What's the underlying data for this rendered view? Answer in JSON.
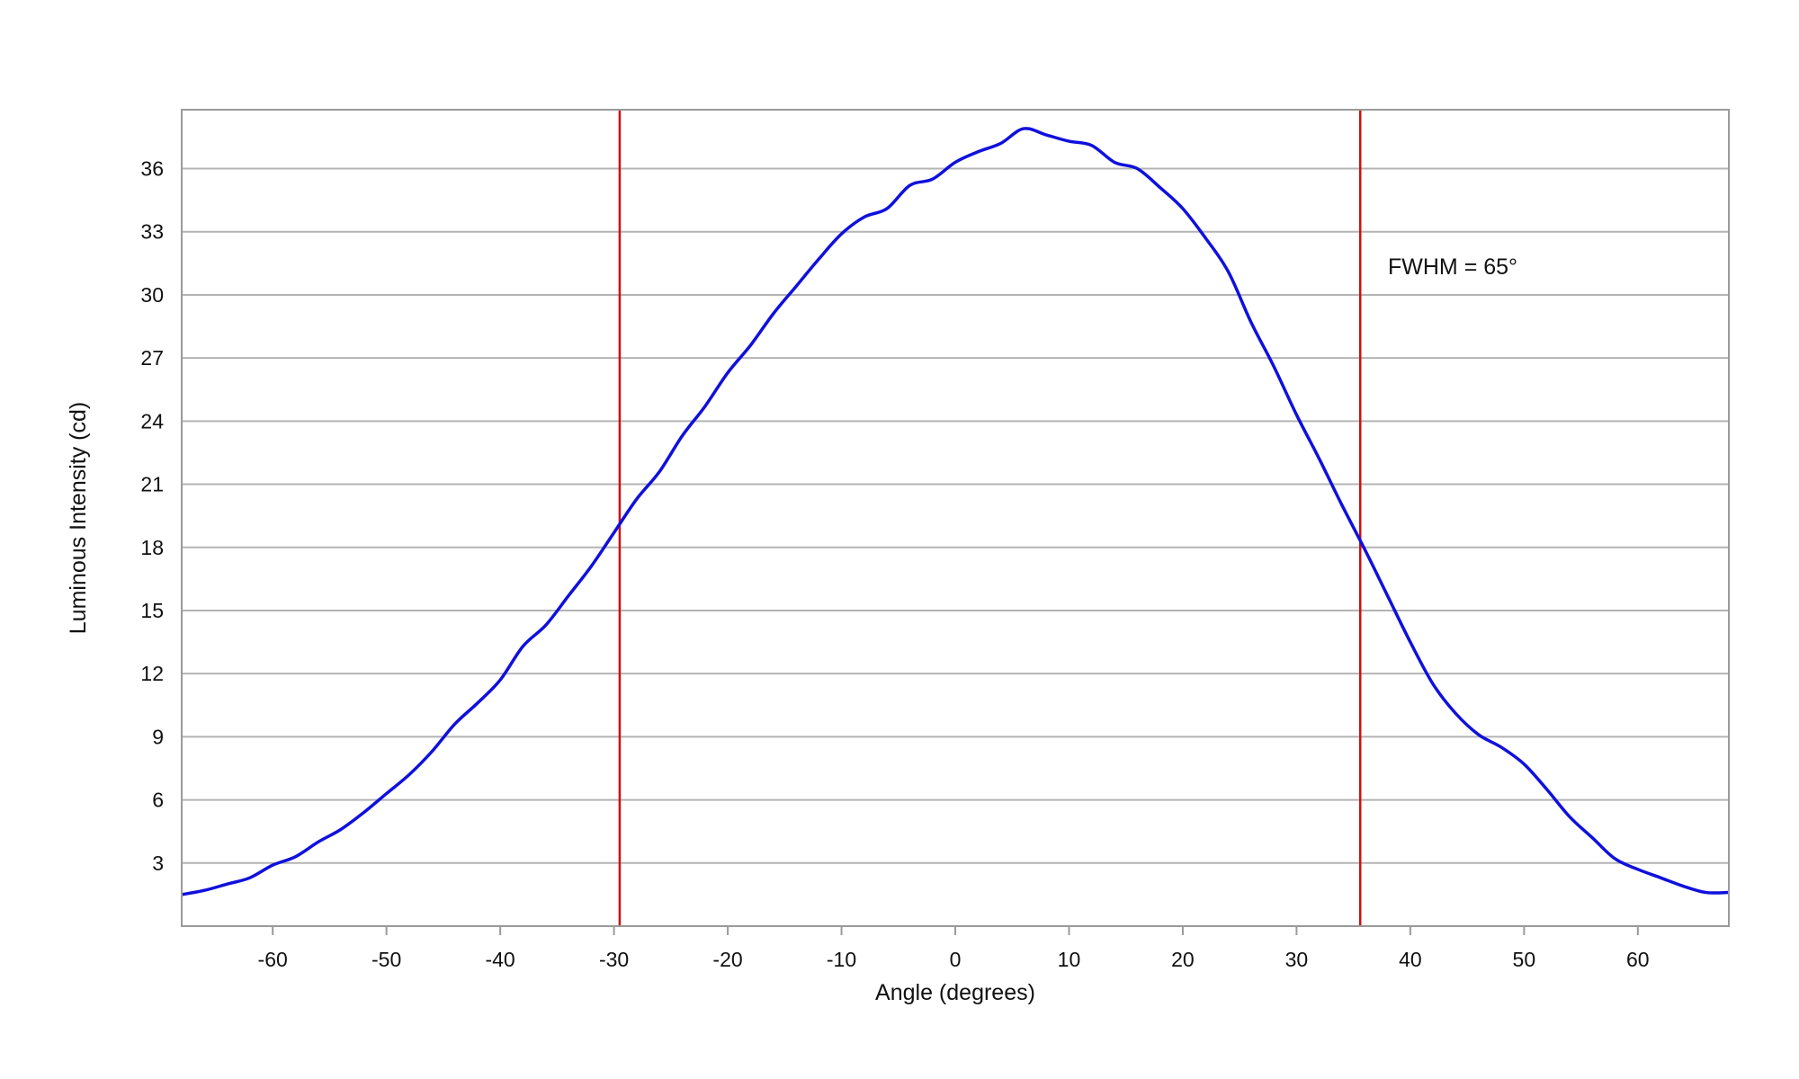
{
  "chart_data": {
    "type": "line",
    "title": "",
    "xlabel": "Angle (degrees)",
    "ylabel": "Luminous Intensity (cd)",
    "xlim": [
      -68,
      68
    ],
    "ylim": [
      0,
      38.8
    ],
    "xticks": [
      -60,
      -50,
      -40,
      -30,
      -20,
      -10,
      0,
      10,
      20,
      30,
      40,
      50,
      60
    ],
    "yticks": [
      3,
      6,
      9,
      12,
      15,
      18,
      21,
      24,
      27,
      30,
      33,
      36
    ],
    "grid": "horizontal",
    "legend": "none",
    "colors": {
      "series": "#1010dd",
      "markers": "#cc1111",
      "grid": "#b4b4b4",
      "frame": "#9a9a9a"
    },
    "series": [
      {
        "x": [
          -68,
          -66,
          -64,
          -62,
          -60,
          -58,
          -56,
          -54,
          -52,
          -50,
          -48,
          -46,
          -44,
          -42,
          -40,
          -38,
          -36,
          -34,
          -32,
          -30,
          -28,
          -26,
          -24,
          -22,
          -20,
          -18,
          -16,
          -14,
          -12,
          -10,
          -8,
          -6,
          -4,
          -2,
          0,
          2,
          4,
          6,
          8,
          10,
          12,
          14,
          16,
          18,
          20,
          22,
          24,
          26,
          28,
          30,
          32,
          34,
          36,
          38,
          40,
          42,
          44,
          46,
          48,
          50,
          52,
          54,
          56,
          58,
          60,
          62,
          64,
          66,
          68
        ],
        "y": [
          1.5,
          1.7,
          2.0,
          2.3,
          2.9,
          3.3,
          4.0,
          4.6,
          5.4,
          6.3,
          7.2,
          8.3,
          9.6,
          10.6,
          11.7,
          13.3,
          14.3,
          15.7,
          17.1,
          18.7,
          20.3,
          21.6,
          23.3,
          24.7,
          26.3,
          27.6,
          29.1,
          30.4,
          31.7,
          32.9,
          33.7,
          34.1,
          35.2,
          35.5,
          36.3,
          36.8,
          37.2,
          37.9,
          37.6,
          37.3,
          37.1,
          36.3,
          36.0,
          35.1,
          34.1,
          32.7,
          31.1,
          28.7,
          26.6,
          24.3,
          22.2,
          20.0,
          17.9,
          15.7,
          13.5,
          11.5,
          10.1,
          9.1,
          8.5,
          7.7,
          6.5,
          5.2,
          4.2,
          3.2,
          2.7,
          2.3,
          1.9,
          1.6,
          1.6
        ]
      }
    ],
    "vlines": [
      -29.5,
      35.6
    ],
    "annotation": "FWHM = 65°"
  }
}
